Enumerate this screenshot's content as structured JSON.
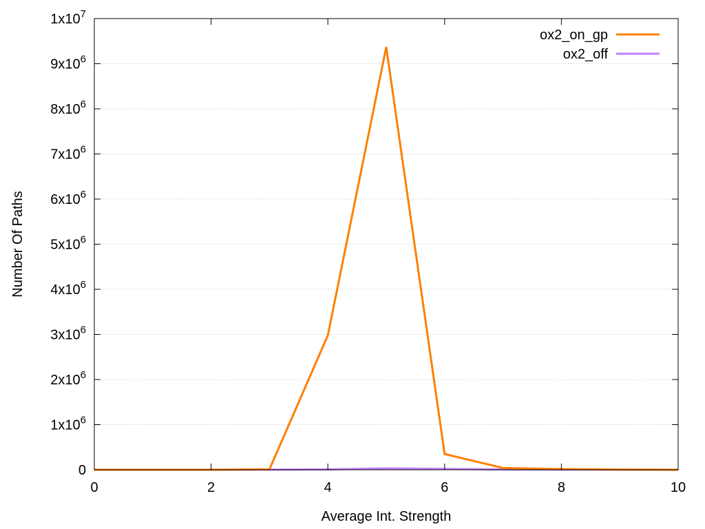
{
  "chart_data": {
    "type": "line",
    "title": "",
    "xlabel": "Average Int. Strength",
    "ylabel": "Number Of Paths",
    "xlim": [
      0,
      10
    ],
    "ylim": [
      0,
      10000000
    ],
    "x_ticks": [
      0,
      2,
      4,
      6,
      8,
      10
    ],
    "x_tick_labels": [
      "0",
      "2",
      "4",
      "6",
      "8",
      "10"
    ],
    "y_ticks": [
      {
        "value": 0,
        "base": "0",
        "exp": ""
      },
      {
        "value": 1000000,
        "base": "1x10",
        "exp": "6"
      },
      {
        "value": 2000000,
        "base": "2x10",
        "exp": "6"
      },
      {
        "value": 3000000,
        "base": "3x10",
        "exp": "6"
      },
      {
        "value": 4000000,
        "base": "4x10",
        "exp": "6"
      },
      {
        "value": 5000000,
        "base": "5x10",
        "exp": "6"
      },
      {
        "value": 6000000,
        "base": "6x10",
        "exp": "6"
      },
      {
        "value": 7000000,
        "base": "7x10",
        "exp": "6"
      },
      {
        "value": 8000000,
        "base": "8x10",
        "exp": "6"
      },
      {
        "value": 9000000,
        "base": "9x10",
        "exp": "6"
      },
      {
        "value": 10000000,
        "base": "1x10",
        "exp": "7"
      }
    ],
    "grid": "horizontal dotted",
    "legend_position": "top-right",
    "series": [
      {
        "name": "ox2_on_gp",
        "color": "#ff7f00",
        "x": [
          0,
          1,
          2,
          3,
          4,
          5,
          6,
          7,
          8,
          9,
          10
        ],
        "y": [
          0,
          0,
          0,
          10000,
          2980000,
          9370000,
          350000,
          40000,
          15000,
          5000,
          0
        ]
      },
      {
        "name": "ox2_off",
        "color": "#c080ff",
        "x": [
          0,
          1,
          2,
          3,
          4,
          5,
          6,
          7,
          8,
          9,
          10
        ],
        "y": [
          0,
          0,
          0,
          1000,
          8000,
          30000,
          20000,
          8000,
          3000,
          1000,
          0
        ]
      }
    ]
  }
}
